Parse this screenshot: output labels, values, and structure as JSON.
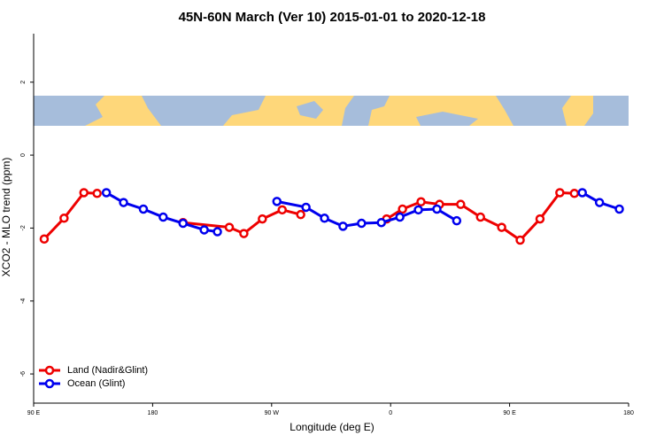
{
  "chart_data": {
    "type": "line",
    "title": "45N-60N March (Ver 10)   2015-01-01 to 2020-12-18",
    "x_label": "Longitude (deg E)",
    "y_label": "XCO2 - MLO trend (ppm)",
    "xlim": [
      90,
      540
    ],
    "xticks": [
      {
        "value": 90,
        "label": "90 E"
      },
      {
        "value": 180,
        "label": "180"
      },
      {
        "value": 270,
        "label": "90 W"
      },
      {
        "value": 360,
        "label": "0"
      },
      {
        "value": 450,
        "label": "90 E"
      },
      {
        "value": 540,
        "label": "180"
      }
    ],
    "ylim": [
      -6.8,
      3.33
    ],
    "yticks": [
      -6,
      -4,
      -2,
      0,
      2
    ],
    "legend": "bottom-left",
    "series": [
      {
        "name": "Land (Nadir&Glint)",
        "color": "#ee0000",
        "x": [
          98,
          113,
          128,
          138,
          null,
          203,
          238,
          249,
          263,
          278,
          292,
          null,
          357,
          369,
          383,
          397,
          413,
          428,
          444,
          458,
          473,
          488,
          499
        ],
        "values": [
          -2.3,
          -1.73,
          -1.03,
          -1.05,
          null,
          -1.85,
          -1.98,
          -2.15,
          -1.75,
          -1.5,
          -1.63,
          null,
          -1.75,
          -1.48,
          -1.28,
          -1.35,
          -1.35,
          -1.7,
          -1.98,
          -2.33,
          -1.75,
          -1.03,
          -1.05
        ]
      },
      {
        "name": "Ocean (Glint)",
        "color": "#0000ee",
        "x": [
          145,
          158,
          173,
          188,
          203,
          219,
          229,
          null,
          274,
          296,
          310,
          324,
          338,
          353,
          367,
          381,
          395,
          410,
          null,
          505,
          518,
          533
        ],
        "values": [
          -1.03,
          -1.3,
          -1.48,
          -1.7,
          -1.87,
          -2.05,
          -2.1,
          null,
          -1.27,
          -1.43,
          -1.73,
          -1.95,
          -1.87,
          -1.85,
          -1.7,
          -1.5,
          -1.48,
          -1.8,
          null,
          -1.03,
          -1.3,
          -1.48
        ]
      }
    ]
  }
}
